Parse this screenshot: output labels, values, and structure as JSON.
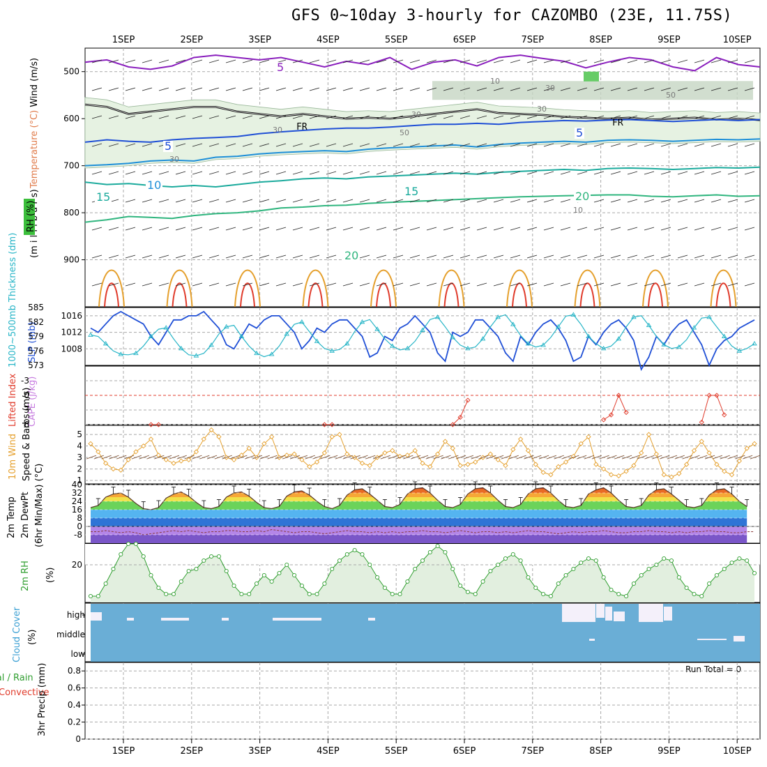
{
  "title": "GFS 0~10day 3-hourly for CAZOMBO (23E, 11.75S)",
  "dates": [
    "1SEP",
    "2SEP",
    "3SEP",
    "4SEP",
    "5SEP",
    "6SEP",
    "7SEP",
    "8SEP",
    "9SEP",
    "10SEP"
  ],
  "run_total": "Run Total = 0",
  "colors": {
    "grid": "#a8a8a8",
    "purple": "#8a1fbd",
    "blue_dark": "#1f4fd6",
    "blue": "#1e8fd8",
    "teal": "#1aaa9c",
    "green": "#2fb57e",
    "orange": "#e5a02d",
    "red": "#e03b2b",
    "slp": "#1f4fd6",
    "thick": "#27b5c7",
    "cloud": "#6aaed6"
  },
  "chart_data": [
    {
      "type": "contour",
      "title": "Temperature / RH / Wind cross-section",
      "ylabel_parts": [
        "Wind (m/s)",
        "Temperature (°C)",
        "(m i l l i b a r s)",
        "RH (%)"
      ],
      "yticks": [
        500,
        600,
        700,
        800,
        900
      ],
      "ylim": [
        1000,
        450
      ],
      "isotherm_labels": [
        "5",
        "5",
        "5",
        "10",
        "15",
        "15",
        "20",
        "20"
      ],
      "rh_labels": [
        "10",
        "30",
        "30",
        "30",
        "50",
        "30",
        "50",
        "30",
        "10"
      ],
      "freezing_label": "FR",
      "isotherms": [
        {
          "name": "-5",
          "level": [
            480,
            475,
            490,
            495,
            488,
            470,
            465,
            470,
            475,
            470,
            480,
            490,
            478,
            485,
            470,
            495,
            480,
            475,
            488,
            470,
            465,
            472,
            478,
            492,
            480,
            470,
            475,
            490,
            498,
            470,
            485,
            490
          ]
        },
        {
          "name": "freezing",
          "level": [
            570,
            575,
            590,
            585,
            580,
            575,
            575,
            585,
            590,
            595,
            590,
            595,
            600,
            598,
            600,
            595,
            590,
            585,
            580,
            588,
            590,
            592,
            596,
            598,
            600,
            598,
            602,
            600,
            598,
            602,
            600,
            603
          ]
        },
        {
          "name": "5",
          "level": [
            650,
            645,
            648,
            650,
            645,
            642,
            640,
            638,
            632,
            628,
            625,
            622,
            620,
            620,
            618,
            615,
            612,
            612,
            610,
            612,
            608,
            606,
            604,
            605,
            603,
            602,
            604,
            606,
            604,
            602,
            604,
            602
          ]
        },
        {
          "name": "10",
          "level": [
            700,
            698,
            695,
            690,
            688,
            690,
            682,
            680,
            675,
            672,
            670,
            668,
            670,
            665,
            662,
            660,
            658,
            656,
            660,
            655,
            652,
            650,
            648,
            650,
            646,
            645,
            646,
            648,
            646,
            644,
            645,
            643
          ]
        },
        {
          "name": "15",
          "level": [
            735,
            740,
            738,
            742,
            745,
            742,
            745,
            740,
            735,
            732,
            728,
            726,
            728,
            724,
            722,
            720,
            718,
            716,
            718,
            714,
            712,
            710,
            708,
            710,
            706,
            705,
            706,
            708,
            706,
            704,
            705,
            703
          ]
        },
        {
          "name": "20",
          "level": [
            820,
            815,
            808,
            810,
            812,
            806,
            802,
            800,
            796,
            790,
            788,
            785,
            784,
            780,
            778,
            776,
            774,
            772,
            770,
            768,
            766,
            765,
            764,
            763,
            762,
            762,
            765,
            766,
            764,
            762,
            765,
            764
          ]
        }
      ]
    },
    {
      "type": "line",
      "title": "SLP and 1000-500mb thickness",
      "ylabel": "1000~500mb Thickness (dm)",
      "ylabel2": "SLP (mb)",
      "yticks_left": [
        "585",
        "582",
        "579",
        "576",
        "573"
      ],
      "yticks_right": [
        "1016",
        "1012",
        "1008"
      ],
      "ylim_left": [
        573,
        585
      ],
      "ylim_right": [
        1004,
        1018
      ],
      "series": [
        {
          "name": "SLP",
          "values": [
            1013,
            1012,
            1014,
            1016,
            1017,
            1016,
            1015,
            1014,
            1011,
            1009,
            1012,
            1015,
            1015,
            1016,
            1016,
            1017,
            1015,
            1013,
            1009,
            1008,
            1011,
            1014,
            1013,
            1015,
            1016,
            1016,
            1014,
            1012,
            1008,
            1010,
            1013,
            1012,
            1014,
            1015,
            1015,
            1013,
            1011,
            1006,
            1007,
            1011,
            1010,
            1013,
            1014,
            1016,
            1014,
            1012,
            1007,
            1005,
            1012,
            1011,
            1012,
            1015,
            1015,
            1013,
            1011,
            1007,
            1005,
            1011,
            1009,
            1012,
            1014,
            1015,
            1013,
            1010,
            1005,
            1006,
            1011,
            1009,
            1012,
            1014,
            1015,
            1013,
            1010,
            1003,
            1006,
            1011,
            1009,
            1012,
            1014,
            1015,
            1012,
            1009,
            1004,
            1008,
            1010,
            1011,
            1013,
            1014,
            1015
          ]
        },
        {
          "name": "Thickness",
          "values": [
            579.3,
            579.0,
            577.5,
            576.0,
            575.3,
            575.2,
            575.5,
            577.0,
            579.0,
            580.5,
            580.8,
            578.5,
            576.5,
            575.2,
            575.0,
            575.5,
            577.2,
            579.5,
            581.0,
            581.3,
            579.0,
            577.0,
            575.5,
            574.8,
            575.3,
            577.0,
            579.5,
            581.5,
            582.0,
            580.0,
            578.0,
            576.5,
            576.0,
            576.3,
            577.5,
            580.0,
            582.0,
            582.5,
            580.5,
            578.5,
            577.0,
            576.2,
            576.5,
            578.0,
            580.3,
            582.5,
            583.0,
            581.0,
            578.8,
            577.2,
            576.5,
            576.8,
            578.5,
            581.0,
            583.0,
            583.5,
            581.5,
            579.2,
            577.5,
            576.8,
            577.2,
            578.8,
            581.0,
            583.2,
            583.5,
            581.5,
            579.0,
            577.5,
            576.5,
            577.0,
            578.5,
            581.0,
            583.0,
            583.3,
            581.3,
            579.0,
            577.3,
            576.5,
            576.8,
            578.3,
            580.8,
            582.8,
            583.0,
            581.0,
            579.0,
            577.0,
            576.0,
            576.5,
            577.5
          ]
        }
      ]
    },
    {
      "type": "line",
      "title": "Lifted index and CAPE",
      "ylabel": "Lifted Index",
      "ylabel2": "CAPE (J/kg)",
      "yticks": [
        "-3",
        "0",
        "3",
        "6"
      ],
      "ylim": [
        -6,
        6
      ],
      "values": [
        null,
        null,
        null,
        null,
        null,
        null,
        null,
        null,
        6.0,
        6.0,
        null,
        null,
        null,
        null,
        null,
        null,
        null,
        null,
        null,
        null,
        null,
        null,
        null,
        null,
        null,
        null,
        null,
        null,
        null,
        null,
        null,
        6.0,
        6.0,
        null,
        null,
        null,
        null,
        null,
        null,
        null,
        null,
        null,
        null,
        null,
        null,
        null,
        null,
        null,
        6.0,
        4.5,
        1.0,
        null,
        null,
        null,
        null,
        null,
        null,
        null,
        null,
        null,
        null,
        null,
        null,
        null,
        null,
        null,
        null,
        null,
        5.0,
        4.0,
        0.0,
        3.5,
        null,
        null,
        null,
        null,
        null,
        null,
        null,
        null,
        null,
        5.5,
        0.0,
        0.0,
        4.0,
        null,
        null,
        null,
        null
      ]
    },
    {
      "type": "line",
      "title": "10m wind speed and barbs",
      "ylabel": "10m Wind",
      "ylabel2": "Speed & Barbs (m/s)",
      "yticks": [
        "5",
        "4",
        "3",
        "2",
        "1"
      ],
      "ylim": [
        0.7,
        5.8
      ],
      "values": [
        4.2,
        3.5,
        2.5,
        2.0,
        1.9,
        2.8,
        3.5,
        4.0,
        4.6,
        3.2,
        2.8,
        2.5,
        2.7,
        2.8,
        3.5,
        4.6,
        5.4,
        4.8,
        3.0,
        2.8,
        3.2,
        3.8,
        3.0,
        4.2,
        4.8,
        3.0,
        3.2,
        3.3,
        2.8,
        2.2,
        2.6,
        3.4,
        4.8,
        5.0,
        3.3,
        3.0,
        2.5,
        2.3,
        3.0,
        3.4,
        3.6,
        3.1,
        3.2,
        3.6,
        2.5,
        2.2,
        3.3,
        4.4,
        3.8,
        2.3,
        2.4,
        2.6,
        3.0,
        3.3,
        2.8,
        2.3,
        3.7,
        4.6,
        3.6,
        2.4,
        1.7,
        1.5,
        2.2,
        2.6,
        3.1,
        4.2,
        4.8,
        2.4,
        2.0,
        1.5,
        1.4,
        1.8,
        2.3,
        3.4,
        5.0,
        3.3,
        1.5,
        1.3,
        1.6,
        2.4,
        3.6,
        4.4,
        3.4,
        2.4,
        1.8,
        1.5,
        2.7,
        3.8,
        4.2
      ]
    },
    {
      "type": "area",
      "title": "2m temperature and dew point",
      "ylabel": "2m Temp",
      "ylabel2": "2m DewPt",
      "ylabel3": "(6hr Min/Max) (°C)",
      "yticks": [
        "40",
        "32",
        "24",
        "16",
        "8",
        "0",
        "-8"
      ],
      "ylim": [
        -16,
        40
      ],
      "temp": [
        18,
        20,
        28,
        31,
        32,
        28,
        22,
        17,
        16,
        18,
        27,
        31,
        33,
        29,
        23,
        18,
        17,
        19,
        28,
        32,
        33,
        29,
        23,
        18,
        17,
        19,
        29,
        33,
        34,
        30,
        24,
        19,
        17,
        20,
        30,
        35,
        36,
        31,
        25,
        19,
        18,
        21,
        31,
        36,
        37,
        32,
        25,
        19,
        18,
        21,
        31,
        36,
        37,
        32,
        25,
        19,
        18,
        21,
        31,
        36,
        37,
        32,
        25,
        19,
        18,
        20,
        31,
        35,
        37,
        32,
        25,
        19,
        18,
        20,
        30,
        35,
        36,
        31,
        25,
        19,
        18,
        20,
        30,
        35,
        36,
        31,
        24,
        19
      ],
      "dewpoint": [
        -5,
        -5,
        -4,
        -5,
        -6,
        -5,
        -6,
        -8,
        -7,
        -6,
        -5,
        -4,
        -5,
        -4,
        -5,
        -6,
        -5,
        -5,
        -4,
        -4,
        -5,
        -5,
        -4,
        -5,
        -3,
        -4,
        -5,
        -6,
        -5,
        -5,
        -6,
        -7,
        -6,
        -5,
        -4,
        -5,
        -5,
        -6,
        -5,
        -6,
        -5,
        -6,
        -5,
        -5,
        -4,
        -5,
        -5,
        -6,
        -5,
        -4,
        -5,
        -6,
        -5,
        -5,
        -6,
        -5,
        -6,
        -5,
        -4,
        -5,
        -5,
        -6,
        -7,
        -6,
        -5,
        -6,
        -5,
        -5,
        -4,
        -5,
        -6,
        -6,
        -5,
        -5,
        -4,
        -5,
        -5,
        -6,
        -5,
        -6,
        -5,
        -5,
        -4,
        -5,
        -5,
        -6,
        -6,
        -5,
        -5
      ]
    },
    {
      "type": "area",
      "title": "2m relative humidity",
      "ylabel": "2m RH",
      "ylabel2": "(%)",
      "yticks": [
        "20"
      ],
      "ylim": [
        2,
        30
      ],
      "values": [
        5,
        5,
        11,
        18,
        25,
        30,
        30,
        24,
        15,
        9,
        6,
        6,
        12,
        17,
        18,
        22,
        24,
        24,
        17,
        10,
        6,
        6,
        11,
        15,
        12,
        16,
        20,
        15,
        10,
        6,
        6,
        11,
        18,
        22,
        25,
        27,
        25,
        20,
        14,
        9,
        6,
        6,
        12,
        18,
        22,
        26,
        29,
        26,
        18,
        10,
        7,
        6,
        12,
        17,
        20,
        23,
        25,
        22,
        14,
        9,
        6,
        5,
        11,
        15,
        18,
        21,
        23,
        22,
        14,
        8,
        6,
        5,
        11,
        15,
        18,
        20,
        23,
        22,
        14,
        9,
        6,
        5,
        11,
        15,
        18,
        21,
        23,
        22,
        16
      ]
    },
    {
      "type": "heatmap",
      "title": "Cloud cover",
      "ylabel": "Cloud Cover",
      "ylabel2": "(%)",
      "yticks": [
        "high",
        "middle",
        "low"
      ]
    },
    {
      "type": "bar",
      "title": "3hr precipitation",
      "ylabel": "Total / Rain",
      "ylabel_red": "Convective",
      "ylabel2": "3hr Precip (mm)",
      "yticks": [
        "0.8",
        "0.6",
        "0.4",
        "0.2",
        "0"
      ],
      "ylim": [
        0,
        0.9
      ],
      "values": []
    }
  ]
}
